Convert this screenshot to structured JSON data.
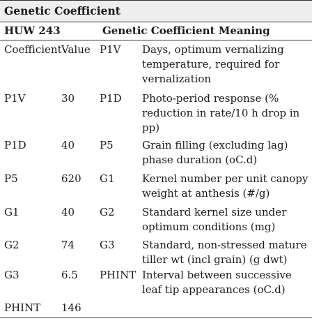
{
  "table": {
    "title": "Genetic Coefficient",
    "cultivar": "HUW 243",
    "meaning_header": "Genetic Coefficient Meaning",
    "rows": [
      {
        "name": "Coefficient",
        "value": "Value",
        "code": "P1V",
        "desc": "Days, optimum vernalizing temperature, required for vernalization"
      },
      {
        "name": "P1V",
        "value": "30",
        "code": "P1D",
        "desc": "Photo-period response (% reduction in rate/10 h drop in pp)"
      },
      {
        "name": "P1D",
        "value": "40",
        "code": "P5",
        "desc": "Grain filling (excluding lag) phase duration (oC.d)"
      },
      {
        "name": "P5",
        "value": "620",
        "code": "G1",
        "desc": "Kernel number per unit canopy weight at anthesis (#/g)"
      },
      {
        "name": "G1",
        "value": "40",
        "code": "G2",
        "desc": "Standard kernel size under optimum conditions (mg)"
      },
      {
        "name": "G2",
        "value": "74",
        "code": "G3",
        "desc": "Standard, non-stressed mature tiller wt (incl grain) (g dwt)"
      },
      {
        "name": "G3",
        "value": "6.5",
        "code": "PHINT",
        "desc": "Interval between successive leaf tip appearances (oC.d)"
      },
      {
        "name": "PHINT",
        "value": "146",
        "code": "",
        "desc": ""
      }
    ]
  }
}
